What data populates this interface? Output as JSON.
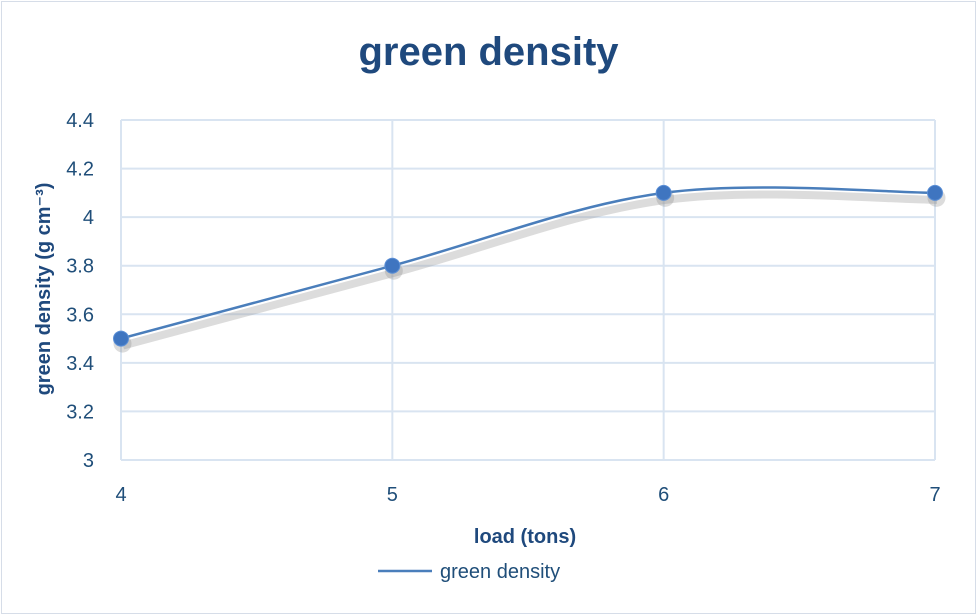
{
  "chart_data": {
    "type": "line",
    "title": "green density",
    "xlabel": "load (tons)",
    "ylabel": "green density (g cm⁻³)",
    "x": [
      4,
      5,
      6,
      7
    ],
    "series": [
      {
        "name": "green density",
        "values": [
          3.5,
          3.8,
          4.1,
          4.1
        ],
        "color": "#4a7ebb",
        "marker_color": "#3f75c0"
      }
    ],
    "xlim": [
      4,
      7
    ],
    "ylim": [
      3,
      4.4
    ],
    "y_ticks": [
      "3",
      "3.2",
      "3.4",
      "3.6",
      "3.8",
      "4",
      "4.2",
      "4.4"
    ],
    "x_ticks": [
      "4",
      "5",
      "6",
      "7"
    ],
    "smoothed": true,
    "grid": true,
    "legend_position": "bottom",
    "colors": {
      "title": "#1f497d",
      "grid": "#d9e4f1",
      "text": "#1f4e79"
    }
  }
}
